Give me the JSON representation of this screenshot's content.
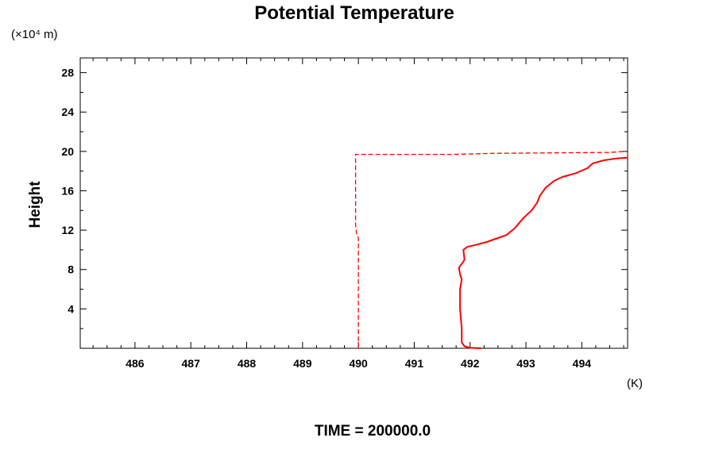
{
  "chart_data": {
    "type": "line",
    "title": "Potential Temperature",
    "xlabel": "",
    "x_unit": "(K)",
    "ylabel": "Height",
    "y_unit": "(×10⁴ m)",
    "footer": "TIME = 200000.0",
    "xlim": [
      485.02,
      494.82
    ],
    "ylim": [
      0,
      29.5
    ],
    "x_ticks": [
      486,
      487,
      488,
      489,
      490,
      491,
      492,
      493,
      494
    ],
    "x_tick_labels": [
      "486",
      "487",
      "488",
      "489",
      "490",
      "491",
      "492",
      "493",
      "494"
    ],
    "y_ticks": [
      4,
      8,
      12,
      16,
      20,
      24,
      28
    ],
    "y_tick_labels": [
      "4",
      "8",
      "12",
      "16",
      "20",
      "24",
      "28"
    ],
    "grid": false,
    "series": [
      {
        "style": "dashed",
        "color": "#ff0000",
        "points": [
          [
            490.0,
            0.0
          ],
          [
            490.0,
            11.2
          ],
          [
            489.97,
            11.6
          ],
          [
            489.95,
            12.5
          ],
          [
            489.95,
            19.7
          ],
          [
            491.7,
            19.7
          ],
          [
            492.4,
            19.8
          ],
          [
            494.5,
            19.9
          ],
          [
            494.75,
            20.0
          ]
        ]
      },
      {
        "style": "solid",
        "color": "#ff0000",
        "points": [
          [
            492.2,
            0.0
          ],
          [
            492.0,
            0.05
          ],
          [
            491.9,
            0.2
          ],
          [
            491.85,
            0.6
          ],
          [
            491.85,
            2.0
          ],
          [
            491.82,
            4.0
          ],
          [
            491.82,
            6.0
          ],
          [
            491.85,
            7.0
          ],
          [
            491.82,
            7.5
          ],
          [
            491.8,
            8.2
          ],
          [
            491.88,
            8.8
          ],
          [
            491.9,
            9.0
          ],
          [
            491.88,
            10.0
          ],
          [
            491.95,
            10.3
          ],
          [
            492.1,
            10.5
          ],
          [
            492.3,
            10.8
          ],
          [
            492.5,
            11.2
          ],
          [
            492.65,
            11.5
          ],
          [
            492.8,
            12.2
          ],
          [
            492.95,
            13.2
          ],
          [
            493.1,
            14.0
          ],
          [
            493.2,
            14.8
          ],
          [
            493.25,
            15.5
          ],
          [
            493.35,
            16.3
          ],
          [
            493.5,
            17.0
          ],
          [
            493.65,
            17.4
          ],
          [
            493.9,
            17.8
          ],
          [
            494.1,
            18.3
          ],
          [
            494.2,
            18.8
          ],
          [
            494.4,
            19.1
          ],
          [
            494.65,
            19.3
          ],
          [
            494.82,
            19.35
          ]
        ]
      }
    ]
  }
}
